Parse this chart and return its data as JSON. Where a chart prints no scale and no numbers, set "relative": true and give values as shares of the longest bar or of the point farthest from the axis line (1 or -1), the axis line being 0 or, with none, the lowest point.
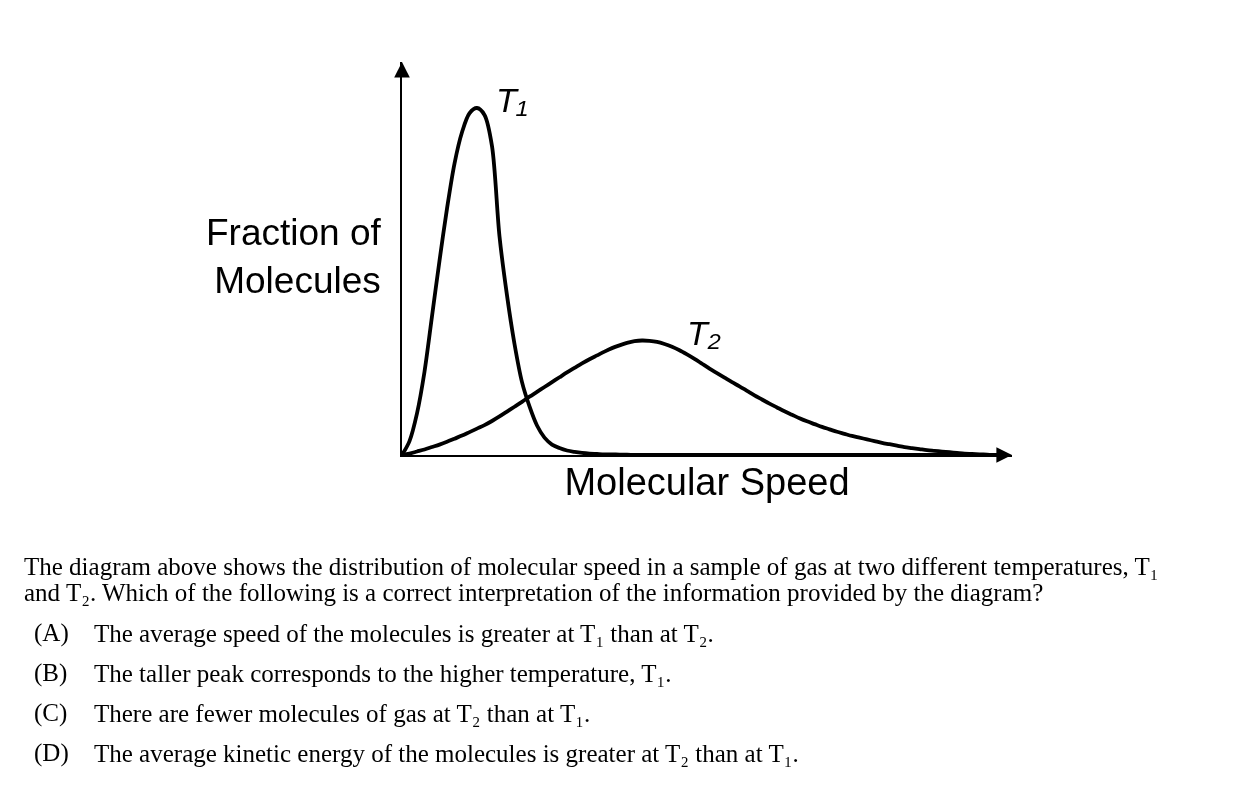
{
  "chart_data": {
    "type": "line",
    "relative": true,
    "xlabel": "Molecular Speed",
    "ylabel": "Fraction of Molecules",
    "categories": [
      null,
      null,
      null,
      null,
      null,
      null,
      null,
      null,
      null,
      null,
      null,
      null,
      null,
      null,
      null,
      null,
      null,
      null,
      null,
      null,
      null,
      null,
      null,
      null,
      null,
      null,
      null,
      null,
      null,
      null,
      null,
      null,
      null,
      null,
      null,
      null,
      null,
      null,
      null,
      null,
      null,
      null,
      null,
      null,
      null,
      null,
      null,
      null,
      null,
      null,
      null,
      null,
      null,
      null,
      null,
      null,
      null,
      null,
      null,
      null,
      null,
      null,
      null,
      null,
      null,
      null,
      null,
      null,
      null,
      null,
      null,
      null,
      null,
      null,
      null,
      null,
      null,
      null,
      null,
      null,
      null
    ],
    "series": [
      {
        "name": "T₁",
        "color": "#000000",
        "values": [
          0,
          0.04,
          0.12,
          0.24,
          0.4,
          0.56,
          0.71,
          0.84,
          0.93,
          0.985,
          1,
          0.98,
          0.89,
          0.63,
          0.46,
          0.32,
          0.21,
          0.14,
          0.085,
          0.05,
          0.03,
          0.02,
          0.013,
          0.009,
          0.006,
          0.004,
          0.003,
          0.002,
          0.002,
          0.001,
          0.001,
          0,
          0,
          0,
          0,
          0,
          0,
          0,
          0,
          0,
          0,
          0,
          0,
          0,
          0,
          0,
          0,
          0,
          0,
          0,
          0,
          0,
          0,
          0,
          0,
          0,
          0,
          0,
          0,
          0,
          0,
          0,
          0,
          0,
          0,
          0,
          0,
          0,
          0,
          0,
          0,
          0,
          0,
          0,
          0,
          0,
          0,
          0,
          0,
          0,
          0
        ]
      },
      {
        "name": "T₂",
        "color": "#000000",
        "values": [
          0,
          0.004,
          0.01,
          0.016,
          0.023,
          0.03,
          0.038,
          0.047,
          0.056,
          0.066,
          0.076,
          0.086,
          0.098,
          0.111,
          0.125,
          0.139,
          0.153,
          0.168,
          0.182,
          0.196,
          0.21,
          0.224,
          0.238,
          0.251,
          0.264,
          0.276,
          0.287,
          0.298,
          0.308,
          0.316,
          0.323,
          0.328,
          0.33,
          0.329,
          0.326,
          0.32,
          0.312,
          0.302,
          0.29,
          0.277,
          0.263,
          0.249,
          0.236,
          0.223,
          0.21,
          0.198,
          0.185,
          0.172,
          0.16,
          0.148,
          0.137,
          0.126,
          0.116,
          0.106,
          0.097,
          0.089,
          0.081,
          0.074,
          0.067,
          0.061,
          0.055,
          0.05,
          0.045,
          0.04,
          0.035,
          0.031,
          0.027,
          0.023,
          0.02,
          0.017,
          0.014,
          0.012,
          0.01,
          0.008,
          0.006,
          0.004,
          0.003,
          0.002,
          0.001,
          0,
          0
        ]
      }
    ],
    "annotations": [
      "The diagram above shows the distribution of molecular speed in a sample of gas at two different temperatures, T₁ and T₂. Which of the following is a correct interpretation of the information provided by the diagram?",
      "(A) The average speed of the molecules is greater at T₁ than at T₂.",
      "(B) The taller peak corresponds to the higher temperature, T₁.",
      "(C) There are fewer molecules of gas at T₂ than at T₁.",
      "(D) The average kinetic energy of the molecules is greater at T₂ than at T₁."
    ]
  }
}
